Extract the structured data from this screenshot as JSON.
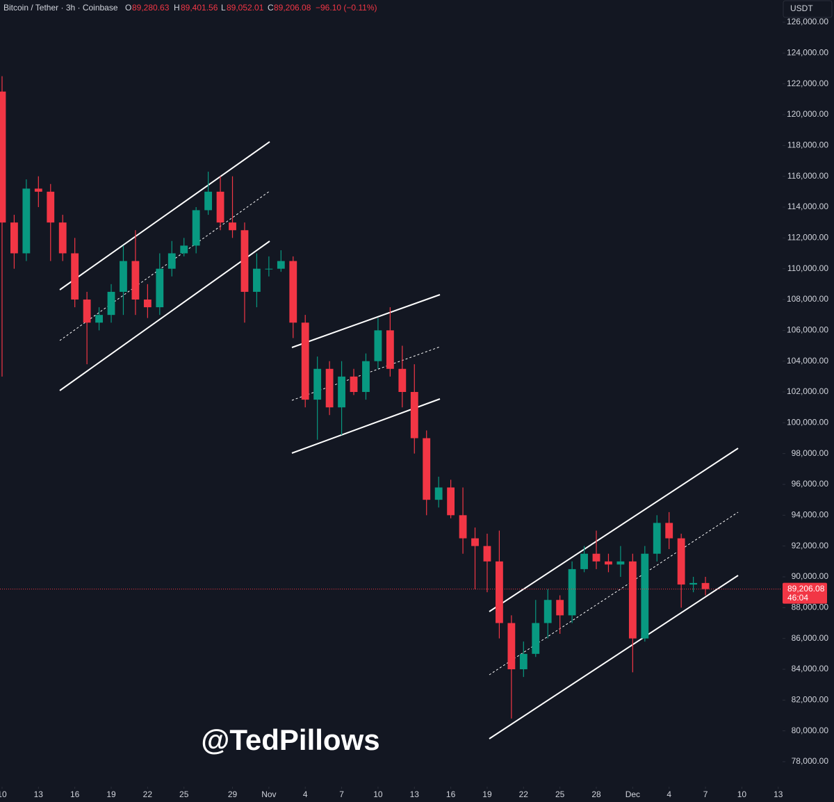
{
  "chart_data": {
    "type": "candlestick",
    "legend": {
      "symbol": "Bitcoin / Tether · 3h · Coinbase",
      "o_prefix": "O",
      "o": "89,280.63",
      "h_prefix": "H",
      "h": "89,401.56",
      "l_prefix": "L",
      "l": "89,052.01",
      "c_prefix": "C",
      "c": "89,206.08",
      "change": "−96.10 (−0.11%)"
    },
    "currency_button": "USDT",
    "watermark": "@TedPillows",
    "up_color": "#089981",
    "down_color": "#f23645",
    "last_price": {
      "value": 89206.08,
      "label": "89,206.08"
    },
    "countdown": "46:04",
    "xlim": [
      -0.17,
      64.3
    ],
    "xticks": [
      {
        "value": 0,
        "label": "10"
      },
      {
        "value": 3,
        "label": "13"
      },
      {
        "value": 6,
        "label": "16"
      },
      {
        "value": 9,
        "label": "19"
      },
      {
        "value": 12,
        "label": "22"
      },
      {
        "value": 15,
        "label": "25"
      },
      {
        "value": 19,
        "label": "29"
      },
      {
        "value": 22,
        "label": "Nov"
      },
      {
        "value": 25,
        "label": "4"
      },
      {
        "value": 28,
        "label": "7"
      },
      {
        "value": 31,
        "label": "10"
      },
      {
        "value": 34,
        "label": "13"
      },
      {
        "value": 37,
        "label": "16"
      },
      {
        "value": 40,
        "label": "19"
      },
      {
        "value": 43,
        "label": "22"
      },
      {
        "value": 46,
        "label": "25"
      },
      {
        "value": 49,
        "label": "28"
      },
      {
        "value": 52,
        "label": "Dec"
      },
      {
        "value": 55,
        "label": "4"
      },
      {
        "value": 58,
        "label": "7"
      },
      {
        "value": 61,
        "label": "10"
      },
      {
        "value": 64,
        "label": "13"
      }
    ],
    "ylim": [
      78000,
      126000
    ],
    "yticks": [
      {
        "value": 78000,
        "label": "78,000.00"
      },
      {
        "value": 80000,
        "label": "80,000.00"
      },
      {
        "value": 82000,
        "label": "82,000.00"
      },
      {
        "value": 84000,
        "label": "84,000.00"
      },
      {
        "value": 86000,
        "label": "86,000.00"
      },
      {
        "value": 88000,
        "label": "88,000.00"
      },
      {
        "value": 90000,
        "label": "90,000.00"
      },
      {
        "value": 92000,
        "label": "92,000.00"
      },
      {
        "value": 94000,
        "label": "94,000.00"
      },
      {
        "value": 96000,
        "label": "96,000.00"
      },
      {
        "value": 98000,
        "label": "98,000.00"
      },
      {
        "value": 100000,
        "label": "100,000.00"
      },
      {
        "value": 102000,
        "label": "102,000.00"
      },
      {
        "value": 104000,
        "label": "104,000.00"
      },
      {
        "value": 106000,
        "label": "106,000.00"
      },
      {
        "value": 108000,
        "label": "108,000.00"
      },
      {
        "value": 110000,
        "label": "110,000.00"
      },
      {
        "value": 112000,
        "label": "112,000.00"
      },
      {
        "value": 114000,
        "label": "114,000.00"
      },
      {
        "value": 116000,
        "label": "116,000.00"
      },
      {
        "value": 118000,
        "label": "118,000.00"
      },
      {
        "value": 120000,
        "label": "120,000.00"
      },
      {
        "value": 122000,
        "label": "122,000.00"
      },
      {
        "value": 124000,
        "label": "124,000.00"
      },
      {
        "value": 126000,
        "label": "126,000.00"
      }
    ],
    "x": [
      0,
      1,
      2,
      3,
      4,
      5,
      6,
      7,
      8,
      9,
      10,
      11,
      12,
      13,
      14,
      15,
      16,
      17,
      18,
      19,
      20,
      21,
      22,
      23,
      24,
      25,
      26,
      27,
      28,
      29,
      30,
      31,
      32,
      33,
      34,
      35,
      36,
      37,
      38,
      39,
      40,
      41,
      42,
      43,
      44,
      45,
      46,
      47,
      48,
      49,
      50,
      51,
      52,
      53,
      54,
      55,
      56,
      57,
      58
    ],
    "open": [
      121500,
      113000,
      111000,
      115200,
      115000,
      113000,
      111000,
      108000,
      106500,
      107000,
      108500,
      110500,
      108000,
      107500,
      110000,
      111000,
      111500,
      113800,
      115000,
      113000,
      112500,
      108500,
      110000,
      110000,
      110500,
      106500,
      101500,
      103500,
      101000,
      103000,
      102000,
      104000,
      106000,
      103500,
      102000,
      99000,
      95000,
      95800,
      94000,
      92500,
      92000,
      91000,
      87000,
      84000,
      85000,
      87000,
      88500,
      87500,
      90500,
      91500,
      91000,
      90800,
      91000,
      86000,
      91500,
      93500,
      92500,
      89500,
      89600
    ],
    "high": [
      122500,
      113500,
      115800,
      116000,
      115500,
      113500,
      112000,
      108500,
      107500,
      109000,
      111500,
      112500,
      109000,
      111000,
      111800,
      112000,
      114000,
      116300,
      116000,
      116000,
      113000,
      111000,
      110800,
      111200,
      110800,
      107000,
      104300,
      104000,
      104000,
      103500,
      104500,
      106800,
      107500,
      105000,
      103800,
      99500,
      96500,
      96300,
      95800,
      93200,
      92800,
      93000,
      87500,
      85800,
      88500,
      89200,
      88800,
      91000,
      92000,
      93000,
      91500,
      92000,
      91500,
      92000,
      94000,
      94200,
      92800,
      90000,
      90000
    ],
    "low": [
      103000,
      110000,
      110500,
      114000,
      110500,
      110500,
      107500,
      103800,
      106000,
      106500,
      107000,
      107000,
      106800,
      107000,
      109500,
      110800,
      111000,
      113500,
      112500,
      112000,
      106500,
      107500,
      109500,
      109800,
      105500,
      101000,
      98900,
      100500,
      99200,
      101800,
      101500,
      103500,
      103000,
      101000,
      98000,
      94000,
      94500,
      93800,
      91500,
      89200,
      89000,
      86000,
      80800,
      83500,
      84800,
      86000,
      86300,
      87000,
      90300,
      90500,
      90300,
      90000,
      83800,
      85800,
      91000,
      91800,
      88000,
      89000,
      88800
    ],
    "close": [
      113000,
      111000,
      115200,
      115000,
      113000,
      111000,
      108000,
      106500,
      107000,
      108500,
      110500,
      108000,
      107500,
      110000,
      111000,
      111500,
      113800,
      115000,
      113000,
      112500,
      108500,
      110000,
      110000,
      110500,
      106500,
      101500,
      103500,
      101000,
      103000,
      102000,
      104000,
      106000,
      103500,
      102000,
      99000,
      95000,
      95800,
      94000,
      92500,
      92000,
      91000,
      87000,
      84000,
      85000,
      87000,
      88500,
      87500,
      90500,
      91500,
      91000,
      90800,
      91000,
      86000,
      91500,
      93500,
      92500,
      89500,
      89600,
      89206.08
    ]
  }
}
